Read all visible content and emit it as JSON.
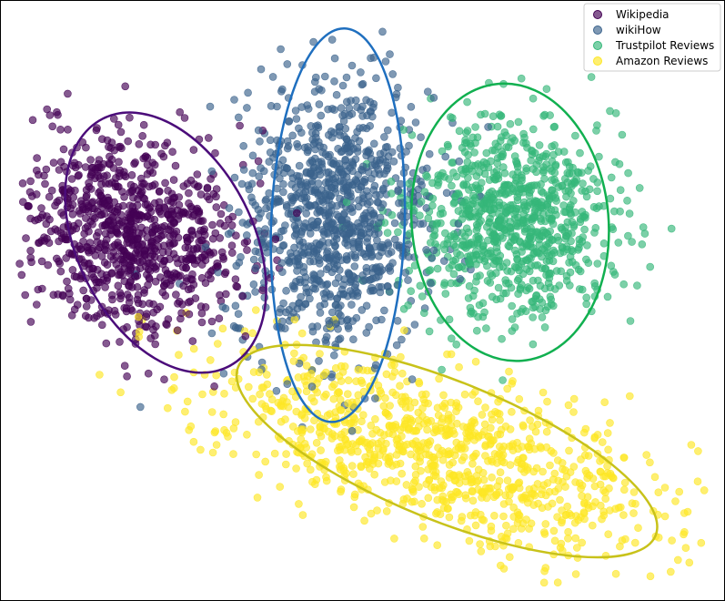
{
  "chart_data": {
    "type": "scatter",
    "title": "",
    "xlabel": "",
    "ylabel": "",
    "xlim": [
      0,
      100
    ],
    "ylim": [
      0,
      100
    ],
    "axes_visible": false,
    "grid": false,
    "legend_position": "top-right",
    "series": [
      {
        "name": "Wikipedia",
        "color": "#440154",
        "cluster_center": [
          17,
          62
        ],
        "cluster_spread": [
          8.5,
          10.5
        ],
        "point_count": 900,
        "enclosure": {
          "center": [
            22,
            60
          ],
          "radii": [
            12.5,
            24
          ],
          "rotation_deg": 27,
          "color": "#4b0c7a"
        }
      },
      {
        "name": "wikiHow",
        "color": "#3b638c",
        "cluster_center": [
          46,
          64
        ],
        "cluster_spread": [
          7.5,
          14
        ],
        "point_count": 1000,
        "enclosure": {
          "center": [
            46.5,
            63
          ],
          "radii": [
            9.5,
            34
          ],
          "rotation_deg": -2,
          "color": "#1f6fbf"
        }
      },
      {
        "name": "Trustpilot Reviews",
        "color": "#35b779",
        "cluster_center": [
          71,
          64
        ],
        "cluster_spread": [
          8,
          10
        ],
        "point_count": 900,
        "enclosure": {
          "center": [
            71,
            63.5
          ],
          "radii": [
            14,
            24
          ],
          "rotation_deg": 5,
          "color": "#11b050"
        }
      },
      {
        "name": "Amazon Reviews",
        "color": "#fde725",
        "cluster_center": [
          61,
          24
        ],
        "cluster_spread": [
          17,
          7
        ],
        "point_count": 1000,
        "enclosure": {
          "center": [
            62,
            24
          ],
          "radii": [
            32,
            12
          ],
          "rotation_deg": -22,
          "color": "#c8c21a"
        }
      }
    ],
    "legend": {
      "entries": [
        "Wikipedia",
        "wikiHow",
        "Trustpilot Reviews",
        "Amazon Reviews"
      ]
    }
  }
}
